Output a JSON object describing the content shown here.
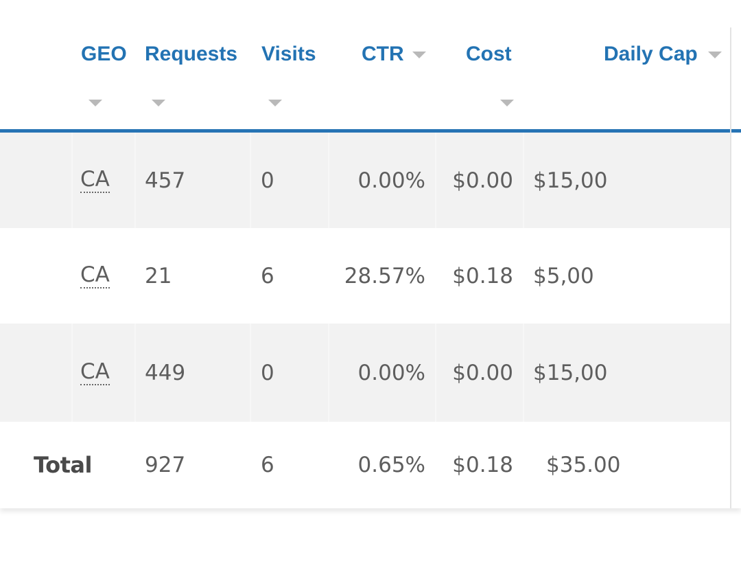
{
  "table": {
    "columns": [
      {
        "key": "geo",
        "label": "GEO"
      },
      {
        "key": "requests",
        "label": "Requests"
      },
      {
        "key": "visits",
        "label": "Visits"
      },
      {
        "key": "ctr",
        "label": "CTR"
      },
      {
        "key": "cost",
        "label": "Cost"
      },
      {
        "key": "daily_cap",
        "label": "Daily Cap"
      }
    ],
    "rows": [
      {
        "geo": "CA",
        "requests": "457",
        "visits": "0",
        "ctr": "0.00%",
        "cost": "$0.00",
        "daily_cap": "$15,00"
      },
      {
        "geo": "CA",
        "requests": "21",
        "visits": "6",
        "ctr": "28.57%",
        "cost": "$0.18",
        "daily_cap": "$5,00"
      },
      {
        "geo": "CA",
        "requests": "449",
        "visits": "0",
        "ctr": "0.00%",
        "cost": "$0.00",
        "daily_cap": "$15,00"
      }
    ],
    "total": {
      "label": "Total",
      "requests": "927",
      "visits": "6",
      "ctr": "0.65%",
      "cost": "$0.18",
      "daily_cap": "$35.00"
    }
  },
  "colors": {
    "header_text": "#2373b3",
    "header_rule": "#2774b5",
    "row_shade": "#f2f2f2",
    "cell_text": "#5e5e5e"
  },
  "icons": {
    "sort": "caret-down-icon"
  }
}
